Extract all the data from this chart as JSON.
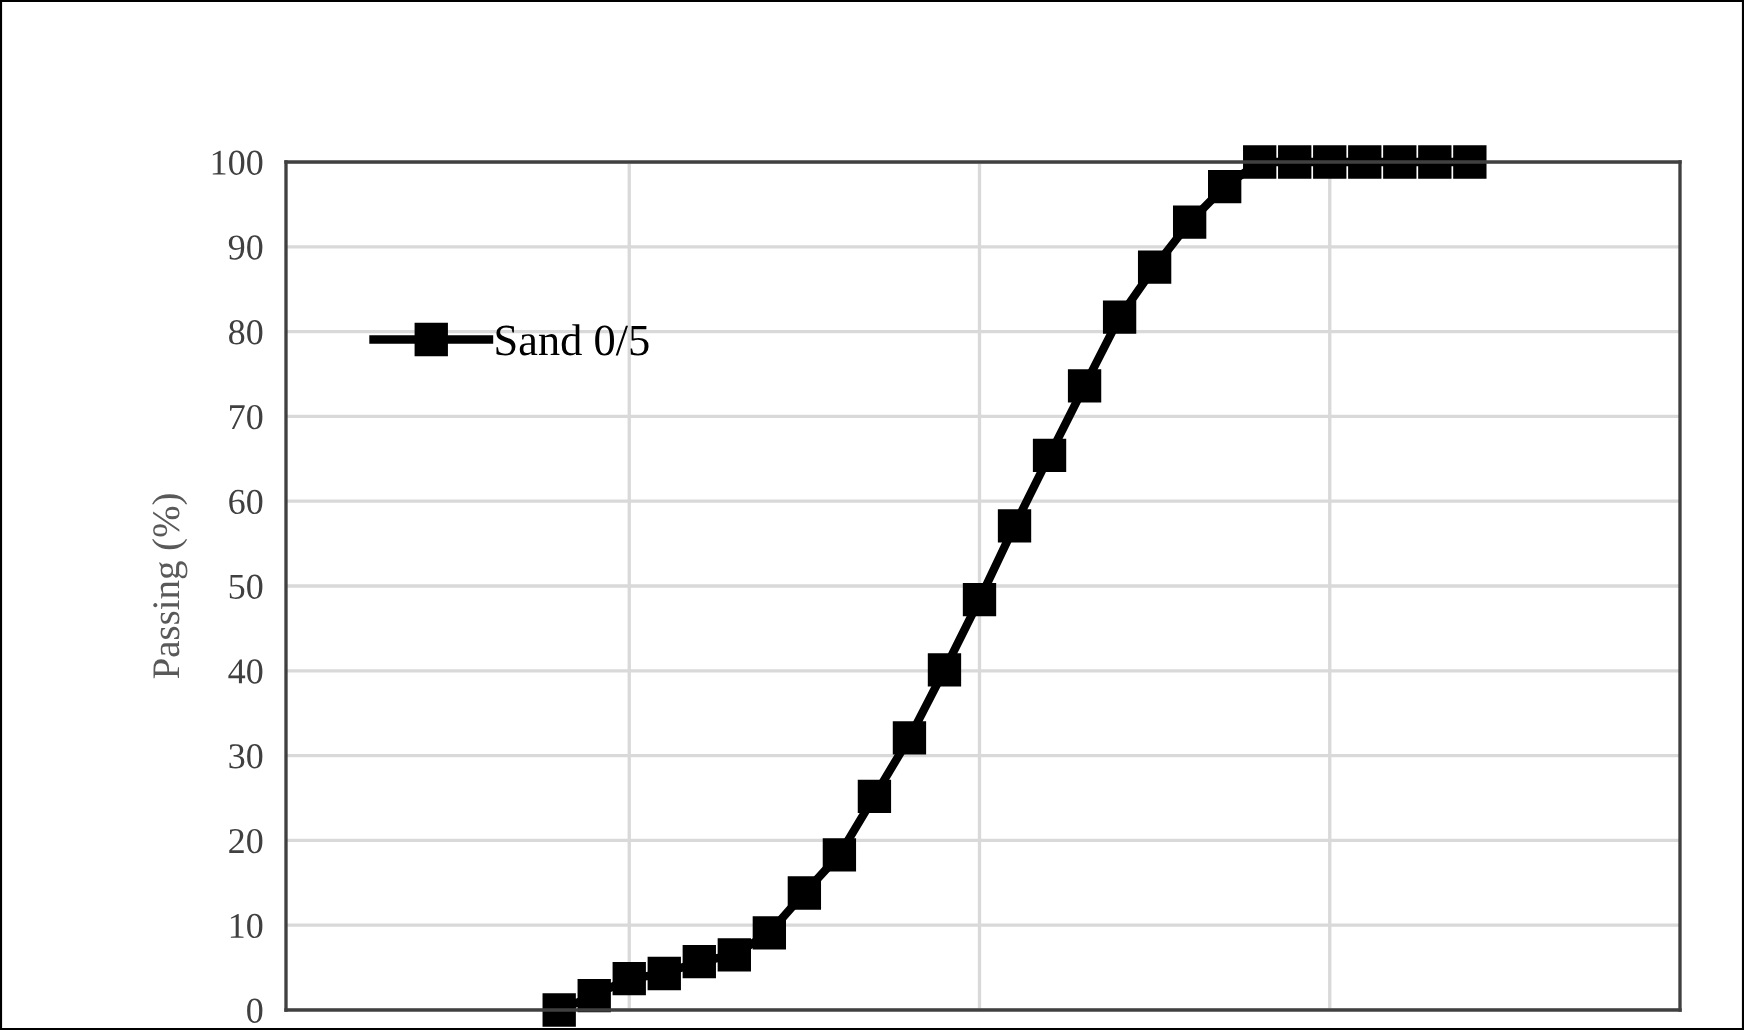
{
  "chart_data": {
    "type": "line",
    "ylabel": "Passing (%)",
    "categories": [
      null,
      null,
      null,
      null,
      null,
      null,
      null,
      null,
      null,
      null,
      null,
      null,
      null,
      null,
      null,
      null,
      null,
      null,
      null,
      null,
      null,
      null,
      null,
      null,
      null,
      null,
      null
    ],
    "series": [
      {
        "name": "Sand 0/5",
        "color": "#000000",
        "values": [
          0,
          1.7,
          3.7,
          4.3,
          5.7,
          6.5,
          9.1,
          13.8,
          18.3,
          25.2,
          32.1,
          40.1,
          48.4,
          57.1,
          65.4,
          73.6,
          81.7,
          87.6,
          92.9,
          97.1,
          100,
          100,
          100,
          100,
          100,
          100,
          100
        ]
      }
    ],
    "ylim": [
      0,
      100
    ],
    "yticks": [
      0,
      10,
      20,
      30,
      40,
      50,
      60,
      70,
      80,
      90,
      100
    ],
    "tick_labels": "y",
    "grid": true,
    "legend": "top left",
    "marker": "square",
    "line_style": "solid"
  }
}
